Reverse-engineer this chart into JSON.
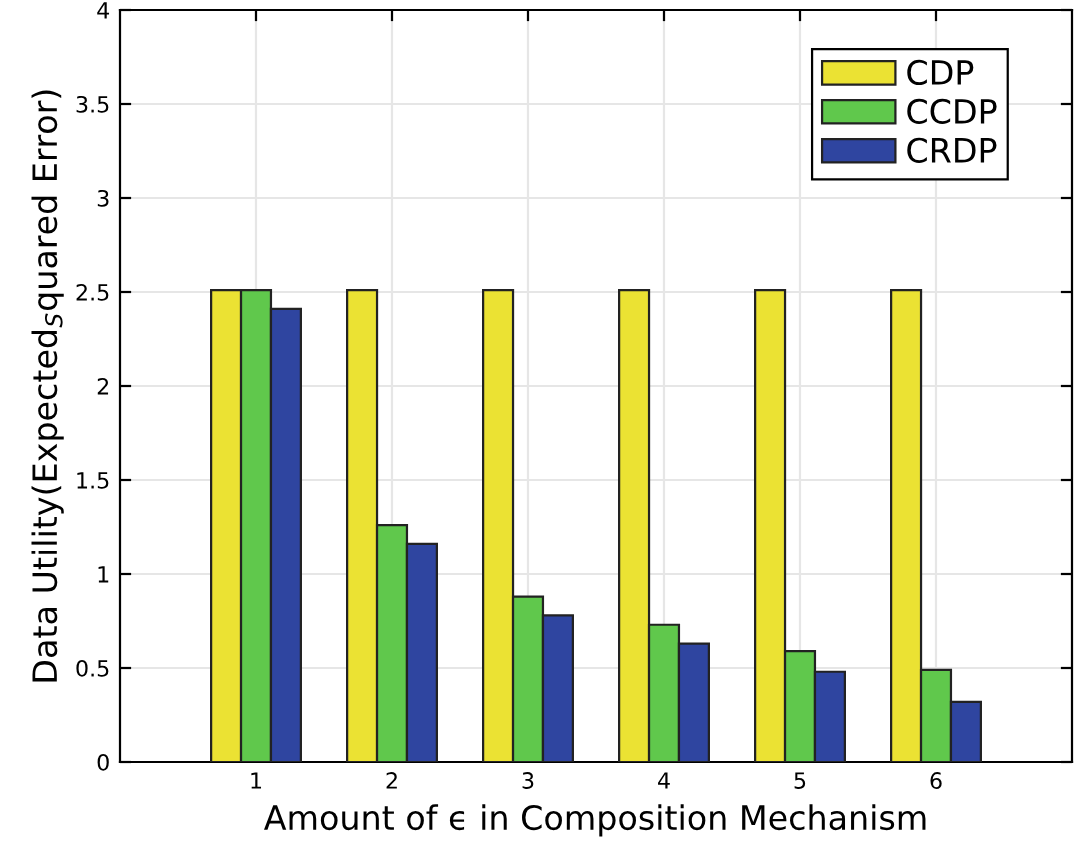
{
  "chart_data": {
    "type": "bar",
    "xlabel": "Amount of ϵ in Composition Mechanism",
    "ylabel": "Data Utility(Expected$_{S}$quared Error)",
    "x": [
      1,
      2,
      3,
      4,
      5,
      6
    ],
    "series": [
      {
        "name": "CDP",
        "color": "#ebe233",
        "values": [
          2.51,
          2.51,
          2.51,
          2.51,
          2.51,
          2.51
        ]
      },
      {
        "name": "CCDP",
        "color": "#60c84c",
        "values": [
          2.51,
          1.26,
          0.88,
          0.73,
          0.59,
          0.49
        ]
      },
      {
        "name": "CRDP",
        "color": "#2f45a0",
        "values": [
          2.41,
          1.16,
          0.78,
          0.63,
          0.48,
          0.32
        ]
      }
    ],
    "xlim": [
      0,
      7
    ],
    "xticks": [
      1,
      2,
      3,
      4,
      5,
      6
    ],
    "ylim": [
      0,
      4
    ],
    "yticks": [
      0,
      0.5,
      1,
      1.5,
      2,
      2.5,
      3,
      3.5,
      4
    ],
    "grid": true,
    "legend": "top right"
  }
}
